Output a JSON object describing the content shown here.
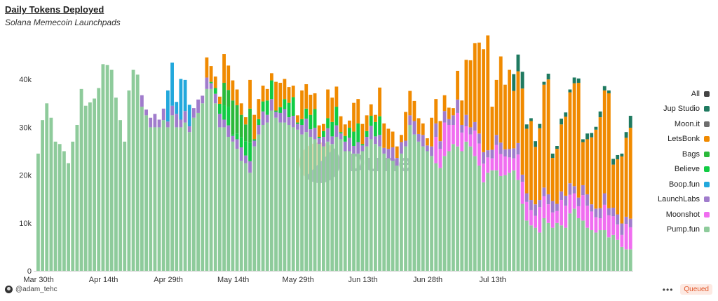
{
  "header": {
    "title": "Daily Tokens Deployed",
    "subtitle": "Solana Memecoin Launchpads"
  },
  "watermark": {
    "text": "Dune"
  },
  "footer": {
    "user": "@adam_tehc",
    "menu_icon": "more-dots-icon",
    "status": "Queued"
  },
  "legend": [
    {
      "label": "All",
      "color": "#444444"
    },
    {
      "label": "Jup Studio",
      "color": "#1f7a60"
    },
    {
      "label": "Moon.it",
      "color": "#6e6e6e"
    },
    {
      "label": "LetsBonk",
      "color": "#f08a00"
    },
    {
      "label": "Bags",
      "color": "#2ab93a"
    },
    {
      "label": "Believe",
      "color": "#11cc44"
    },
    {
      "label": "Boop.fun",
      "color": "#22a8dc"
    },
    {
      "label": "LaunchLabs",
      "color": "#a07ccc"
    },
    {
      "label": "Moonshot",
      "color": "#f06ef0"
    },
    {
      "label": "Pump.fun",
      "color": "#8ecb9b"
    }
  ],
  "chart_data": {
    "type": "bar",
    "stacked": true,
    "x_start": "2025-03-30",
    "x_end": "2025-07-31",
    "x_ticks": [
      "Mar 30th",
      "Apr 14th",
      "Apr 29th",
      "May 14th",
      "May 29th",
      "Jun 13th",
      "Jun 28th",
      "Jul 13th"
    ],
    "y_ticks": [
      "0",
      "10k",
      "20k",
      "30k",
      "40k"
    ],
    "ylim": [
      0,
      50000
    ],
    "legend_position": "right",
    "grid": false,
    "series": [
      {
        "name": "Pump.fun",
        "color": "#8ecb9b",
        "values": [
          24500,
          31500,
          35000,
          32000,
          27000,
          26500,
          25000,
          22500,
          27000,
          30500,
          38000,
          34500,
          35200,
          36000,
          38200,
          43200,
          43000,
          42000,
          36200,
          31500,
          27000,
          37700,
          42000,
          41000,
          34300,
          32500,
          30000,
          30000,
          30000,
          31500,
          30000,
          32500,
          30000,
          30000,
          31000,
          29000,
          32000,
          33000,
          35000,
          38000,
          38000,
          35000,
          30000,
          30000,
          28000,
          27000,
          25500,
          23000,
          22500,
          20500,
          26000,
          28500,
          30500,
          31000,
          33500,
          32000,
          31000,
          31000,
          30500,
          30000,
          29500,
          28500,
          29000,
          28000,
          27500,
          26500,
          26000,
          27000,
          26500,
          28000,
          27500,
          25000,
          25000,
          24500,
          24500,
          25000,
          26000,
          27500,
          26500,
          26000,
          24500,
          23500,
          23000,
          22000,
          24500,
          26000,
          30500,
          28500,
          27000,
          26000,
          25000,
          24000,
          22500,
          21500,
          24000,
          25000,
          26500,
          26000,
          25000,
          27000,
          26000,
          24000,
          22000,
          18500,
          20500,
          21000,
          21000,
          19800,
          20000,
          20500,
          21000,
          19000,
          14000,
          10500,
          9500,
          9000,
          8000,
          11000,
          10000,
          9000,
          10000,
          9500,
          9000,
          12000,
          13000,
          11000,
          10500,
          9000,
          8500,
          8000,
          8500,
          8500,
          7000,
          7500,
          6500,
          5000,
          4500,
          4500
        ],
        "precision": "estimated"
      },
      {
        "name": "Moonshot",
        "color": "#f06ef0",
        "values": [
          0,
          0,
          0,
          0,
          0,
          0,
          0,
          0,
          0,
          0,
          0,
          0,
          0,
          0,
          0,
          0,
          0,
          0,
          0,
          0,
          0,
          0,
          0,
          0,
          0,
          0,
          0,
          0,
          0,
          0,
          0,
          0,
          0,
          0,
          0,
          0,
          0,
          0,
          0,
          0,
          0,
          0,
          0,
          0,
          0,
          0,
          0,
          0,
          0,
          0,
          0,
          0,
          0,
          0,
          0,
          0,
          0,
          0,
          0,
          0,
          0,
          0,
          0,
          0,
          0,
          0,
          0,
          0,
          0,
          0,
          0,
          0,
          0,
          0,
          0,
          0,
          0,
          0,
          0,
          0,
          0,
          0,
          0,
          0,
          0,
          0,
          0,
          0,
          0,
          0,
          0,
          0,
          0,
          0,
          0,
          0,
          0,
          0,
          0,
          0,
          0,
          0,
          0,
          0,
          0,
          0,
          0,
          0,
          0,
          0,
          0,
          0,
          0,
          0,
          0,
          0,
          0,
          0,
          0,
          0,
          0,
          0,
          0,
          0,
          0,
          0,
          0,
          0,
          0,
          0,
          0,
          0,
          0,
          0,
          0,
          0,
          0,
          0
        ],
        "precision": "estimated"
      },
      {
        "name": "LaunchLabs",
        "color": "#a07ccc",
        "values": [
          0,
          0,
          0,
          0,
          0,
          0,
          0,
          0,
          0,
          0,
          0,
          0,
          0,
          0,
          0,
          0,
          0,
          0,
          0,
          0,
          0,
          0,
          0,
          0,
          0,
          0,
          0,
          0,
          0,
          0,
          0,
          0,
          0,
          0,
          0,
          0,
          0,
          0,
          0,
          0,
          0,
          0,
          0,
          0,
          0,
          0,
          0,
          0,
          0,
          0,
          0,
          0,
          0,
          0,
          0,
          0,
          0,
          0,
          0,
          0,
          0,
          0,
          0,
          0,
          0,
          0,
          0,
          0,
          0,
          0,
          0,
          0,
          0,
          0,
          0,
          0,
          0,
          0,
          0,
          0,
          0,
          0,
          0,
          0,
          0,
          0,
          0,
          0,
          0,
          0,
          0,
          0,
          0,
          0,
          0,
          0,
          0,
          0,
          0,
          0,
          0,
          0,
          0,
          0,
          0,
          0,
          0,
          0,
          0,
          0,
          0,
          0,
          0,
          0,
          0,
          0,
          0,
          0,
          0,
          0,
          0,
          0,
          0,
          0,
          0,
          0,
          0,
          0,
          0,
          0,
          0,
          0,
          0,
          0,
          0,
          0,
          0,
          0
        ],
        "precision": "estimated"
      },
      {
        "name": "Boop.fun",
        "color": "#22a8dc",
        "values": [
          0,
          0,
          0,
          0,
          0,
          0,
          0,
          0,
          0,
          0,
          0,
          0,
          0,
          0,
          0,
          0,
          0,
          0,
          0,
          0,
          0,
          0,
          0,
          0,
          0,
          0,
          0,
          0,
          0,
          0,
          0,
          0,
          0,
          0,
          0,
          0,
          0,
          0,
          0,
          0,
          0,
          0,
          0,
          0,
          0,
          0,
          0,
          0,
          0,
          0,
          0,
          0,
          0,
          0,
          0,
          0,
          0,
          0,
          0,
          0,
          0,
          0,
          0,
          0,
          0,
          0,
          0,
          0,
          0,
          0,
          0,
          0,
          0,
          0,
          0,
          0,
          0,
          0,
          0,
          0,
          0,
          0,
          0,
          0,
          0,
          0,
          0,
          0,
          0,
          0,
          0,
          0,
          0,
          0,
          0,
          0,
          0,
          0,
          0,
          0,
          0,
          0,
          0,
          0,
          0,
          0,
          0,
          0,
          0,
          0,
          0,
          0,
          0,
          0,
          0,
          0,
          0,
          0,
          0,
          0,
          0,
          0,
          0,
          0,
          0,
          0,
          0,
          0,
          0,
          0,
          0,
          0,
          0,
          0,
          0,
          0,
          0,
          0
        ],
        "precision": "estimated"
      },
      {
        "name": "Believe",
        "color": "#11cc44",
        "values": [
          0,
          0,
          0,
          0,
          0,
          0,
          0,
          0,
          0,
          0,
          0,
          0,
          0,
          0,
          0,
          0,
          0,
          0,
          0,
          0,
          0,
          0,
          0,
          0,
          0,
          0,
          0,
          0,
          0,
          0,
          0,
          0,
          0,
          0,
          0,
          0,
          0,
          0,
          0,
          0,
          0,
          0,
          0,
          0,
          0,
          0,
          0,
          0,
          0,
          0,
          0,
          0,
          0,
          0,
          0,
          0,
          0,
          0,
          0,
          0,
          0,
          0,
          0,
          0,
          0,
          0,
          0,
          0,
          0,
          0,
          0,
          0,
          0,
          0,
          0,
          0,
          0,
          0,
          0,
          0,
          0,
          0,
          0,
          0,
          0,
          0,
          0,
          0,
          0,
          0,
          0,
          0,
          0,
          0,
          0,
          0,
          0,
          0,
          0,
          0,
          0,
          0,
          0,
          0,
          0,
          0,
          0,
          0,
          0,
          0,
          0,
          0,
          0,
          0,
          0,
          0,
          0,
          0,
          0,
          0,
          0,
          0,
          0,
          0,
          0,
          0,
          0,
          0,
          0,
          0,
          0,
          0,
          0,
          0,
          0,
          0,
          0,
          0
        ],
        "precision": "estimated"
      },
      {
        "name": "Bags",
        "color": "#2ab93a",
        "values": [
          0,
          0,
          0,
          0,
          0,
          0,
          0,
          0,
          0,
          0,
          0,
          0,
          0,
          0,
          0,
          0,
          0,
          0,
          0,
          0,
          0,
          0,
          0,
          0,
          0,
          0,
          0,
          0,
          0,
          0,
          0,
          0,
          0,
          0,
          0,
          0,
          0,
          0,
          0,
          0,
          0,
          0,
          0,
          0,
          0,
          0,
          0,
          0,
          0,
          0,
          0,
          0,
          0,
          0,
          0,
          0,
          0,
          0,
          0,
          0,
          0,
          0,
          0,
          0,
          0,
          0,
          0,
          0,
          0,
          0,
          0,
          0,
          0,
          0,
          0,
          0,
          0,
          0,
          0,
          0,
          0,
          0,
          0,
          0,
          0,
          0,
          0,
          0,
          0,
          0,
          0,
          0,
          0,
          0,
          0,
          0,
          0,
          0,
          0,
          0,
          0,
          0,
          0,
          0,
          0,
          0,
          0,
          0,
          0,
          0,
          0,
          0,
          0,
          0,
          0,
          0,
          0,
          0,
          0,
          0,
          0,
          0,
          0,
          0,
          0,
          0,
          0,
          0,
          0,
          0,
          0,
          0,
          0,
          0,
          0,
          0,
          0,
          0
        ],
        "precision": "estimated"
      },
      {
        "name": "LetsBonk",
        "color": "#f08a00",
        "values": [
          0,
          0,
          0,
          0,
          0,
          0,
          0,
          0,
          0,
          0,
          0,
          0,
          0,
          0,
          0,
          0,
          0,
          0,
          0,
          0,
          0,
          0,
          0,
          0,
          0,
          0,
          0,
          0,
          0,
          0,
          0,
          0,
          0,
          0,
          0,
          0,
          0,
          0,
          0,
          0,
          0,
          0,
          0,
          0,
          0,
          0,
          0,
          0,
          0,
          0,
          0,
          0,
          0,
          0,
          0,
          0,
          0,
          0,
          0,
          0,
          0,
          0,
          0,
          0,
          0,
          0,
          0,
          0,
          0,
          0,
          0,
          0,
          0,
          0,
          0,
          0,
          0,
          0,
          0,
          0,
          0,
          0,
          0,
          0,
          0,
          0,
          0,
          0,
          0,
          0,
          0,
          0,
          0,
          0,
          0,
          0,
          0,
          0,
          0,
          0,
          0,
          0,
          0,
          0,
          0,
          0,
          0,
          0,
          0,
          0,
          0,
          0,
          0,
          0,
          0,
          0,
          0,
          0,
          0,
          0,
          0,
          0,
          0,
          0,
          0,
          0,
          0,
          0,
          0,
          0,
          0,
          0,
          0,
          0,
          0,
          0,
          0,
          0
        ],
        "precision": "estimated"
      },
      {
        "name": "Jup Studio",
        "color": "#1f7a60",
        "values": [
          0,
          0,
          0,
          0,
          0,
          0,
          0,
          0,
          0,
          0,
          0,
          0,
          0,
          0,
          0,
          0,
          0,
          0,
          0,
          0,
          0,
          0,
          0,
          0,
          0,
          0,
          0,
          0,
          0,
          0,
          0,
          0,
          0,
          0,
          0,
          0,
          0,
          0,
          0,
          0,
          0,
          0,
          0,
          0,
          0,
          0,
          0,
          0,
          0,
          0,
          0,
          0,
          0,
          0,
          0,
          0,
          0,
          0,
          0,
          0,
          0,
          0,
          0,
          0,
          0,
          0,
          0,
          0,
          0,
          0,
          0,
          0,
          0,
          0,
          0,
          0,
          0,
          0,
          0,
          0,
          0,
          0,
          0,
          0,
          0,
          0,
          0,
          0,
          0,
          0,
          0,
          0,
          0,
          0,
          0,
          0,
          0,
          0,
          0,
          0,
          0,
          0,
          0,
          0,
          0,
          0,
          0,
          0,
          0,
          0,
          0,
          0,
          0,
          0,
          0,
          0,
          0,
          0,
          0,
          0,
          0,
          0,
          0,
          0,
          0,
          0,
          0,
          0,
          0,
          0,
          0,
          0,
          0,
          0,
          0,
          0,
          0,
          0
        ],
        "precision": "estimated"
      }
    ]
  }
}
